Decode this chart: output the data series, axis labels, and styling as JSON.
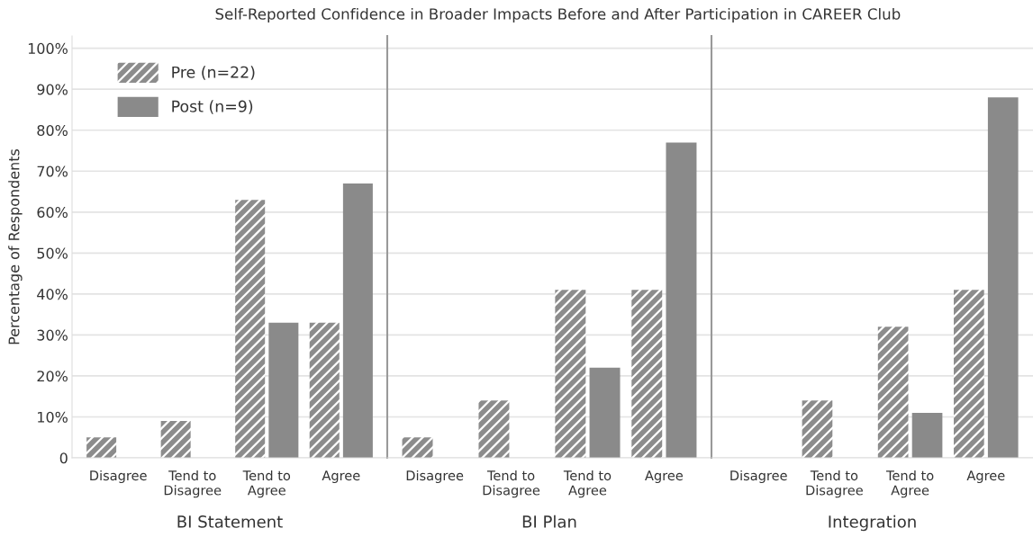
{
  "chart_data": [
    {
      "type": "bar",
      "title": "Self-Reported Confidence in Broader Impacts Before and After Participation in CAREER Club",
      "xlabel": "BI Statement",
      "ylabel": "Percentage of Respondents",
      "categories": [
        "Disagree",
        "Tend to\nDisagree",
        "Tend to\nAgree",
        "Agree"
      ],
      "series": [
        {
          "name": "Pre (n=22)",
          "color": "#8c8c8c",
          "values": [
            5,
            9,
            63,
            33
          ]
        },
        {
          "name": "Post (n=9)",
          "color": "#8a8a8a",
          "values": [
            0,
            0,
            33,
            67
          ]
        }
      ],
      "ylim": [
        0,
        103
      ],
      "yticks": [
        {
          "value": 0,
          "label": "0"
        },
        {
          "value": 10,
          "label": "10%"
        },
        {
          "value": 20,
          "label": "20%"
        },
        {
          "value": 30,
          "label": "30%"
        },
        {
          "value": 40,
          "label": "40%"
        },
        {
          "value": 50,
          "label": "50%"
        },
        {
          "value": 60,
          "label": "60%"
        },
        {
          "value": 70,
          "label": "70%"
        },
        {
          "value": 80,
          "label": "80%"
        },
        {
          "value": 90,
          "label": "90%"
        },
        {
          "value": 100,
          "label": "100%"
        }
      ],
      "grid": "y",
      "legend": "top left"
    },
    {
      "type": "bar",
      "xlabel": "BI Plan",
      "categories": [
        "Disagree",
        "Tend to\nDisagree",
        "Tend to\nAgree",
        "Agree"
      ],
      "series": [
        {
          "color": "#8c8c8c",
          "values": [
            5,
            14,
            41,
            41
          ]
        },
        {
          "color": "#8a8a8a",
          "values": [
            0,
            0,
            22,
            77
          ]
        }
      ],
      "ylim": [
        0,
        103
      ],
      "yticks": [
        0,
        10,
        20,
        30,
        40,
        50,
        60,
        70,
        80,
        90,
        100
      ],
      "grid": "y",
      "tick_labels": "x"
    },
    {
      "type": "bar",
      "xlabel": "Integration",
      "categories": [
        "Disagree",
        "Tend to\nDisagree",
        "Tend to\nAgree",
        "Agree"
      ],
      "series": [
        {
          "color": "#8c8c8c",
          "values": [
            0,
            14,
            32,
            41
          ]
        },
        {
          "color": "#8a8a8a",
          "values": [
            0,
            0,
            11,
            88
          ]
        }
      ],
      "ylim": [
        0,
        103
      ],
      "yticks": [
        0,
        10,
        20,
        30,
        40,
        50,
        60,
        70,
        80,
        90,
        100
      ],
      "grid": "y",
      "tick_labels": "x"
    }
  ]
}
